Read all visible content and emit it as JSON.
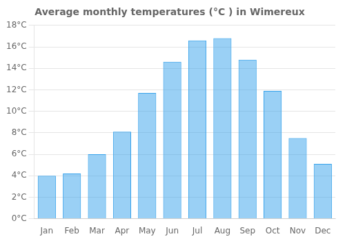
{
  "chart_data": {
    "type": "bar",
    "title": "Average monthly temperatures (°C ) in Wimereux",
    "categories": [
      "Jan",
      "Feb",
      "Mar",
      "Apr",
      "May",
      "Jun",
      "Jul",
      "Aug",
      "Sep",
      "Oct",
      "Nov",
      "Dec"
    ],
    "values": [
      4.0,
      4.2,
      6.0,
      8.1,
      11.7,
      14.6,
      16.6,
      16.8,
      14.8,
      11.9,
      7.5,
      5.1
    ],
    "ylim": [
      0,
      18
    ],
    "yticks": [
      {
        "value": 0,
        "label": "0°C"
      },
      {
        "value": 2,
        "label": "2°C"
      },
      {
        "value": 4,
        "label": "4°C"
      },
      {
        "value": 6,
        "label": "6°C"
      },
      {
        "value": 8,
        "label": "8°C"
      },
      {
        "value": 10,
        "label": "10°C"
      },
      {
        "value": 12,
        "label": "12°C"
      },
      {
        "value": 14,
        "label": "14°C"
      },
      {
        "value": 16,
        "label": "16°C"
      },
      {
        "value": 18,
        "label": "18°C"
      }
    ],
    "grid": true
  }
}
